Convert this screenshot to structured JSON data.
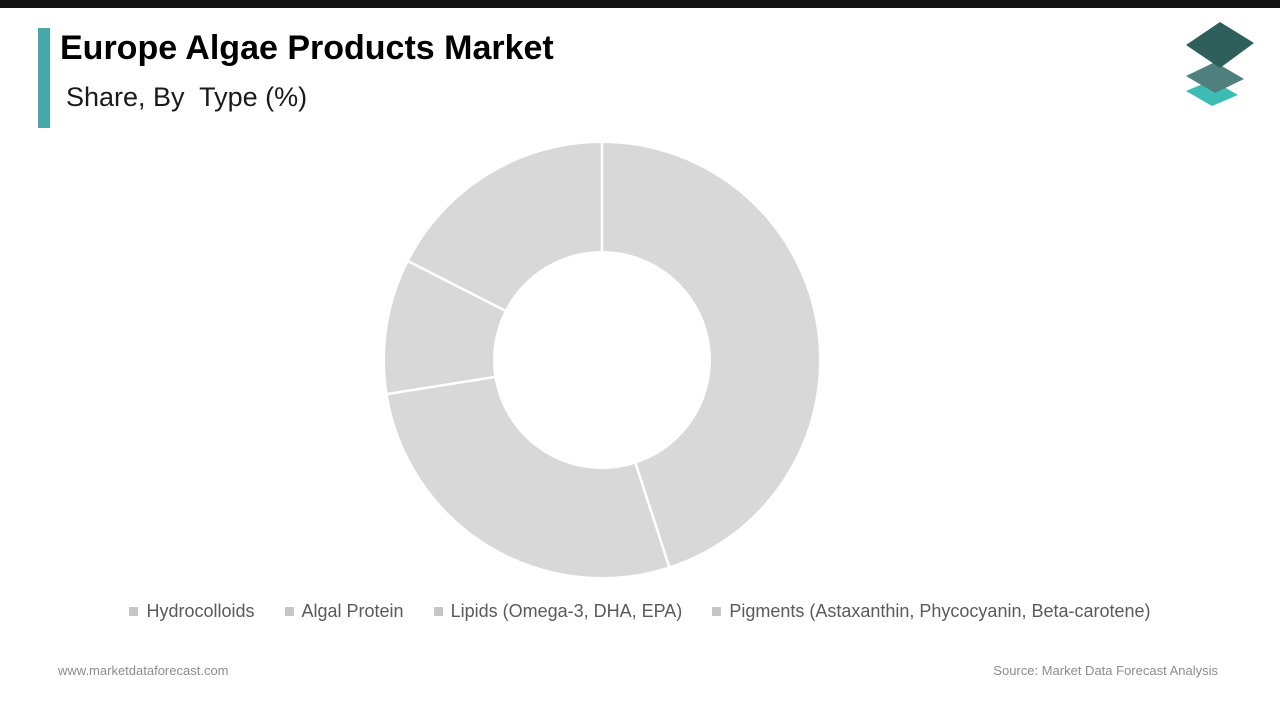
{
  "page": {
    "title": "Europe Algae Products Market",
    "subtitle": "Share, By  Type (%)",
    "footer_left": "www.marketdataforecast.com",
    "footer_right": "Source: Market Data Forecast Analysis"
  },
  "colors": {
    "top_bar": "#141414",
    "accent_teal": "#48a9a9",
    "slice_gray": "#d8d8d8",
    "legend_marker_gray": "#c6c6c6",
    "legend_text_gray": "#5a5a5a",
    "footer_text_gray": "#8c8c8c",
    "logo_layer_top": "#2f5f5b",
    "logo_layer_middle": "#4f807e",
    "logo_layer_bottom": "#3cbcb2"
  },
  "chart_data": {
    "type": "pie",
    "subtype": "donut",
    "title": "Europe Algae Products Market Share, By Type (%)",
    "categories": [
      "Hydrocolloids",
      "Algal Protein",
      "Lipids (Omega-3, DHA, EPA)",
      "Pigments (Astaxanthin, Phycocyanin, Beta-carotene)"
    ],
    "values": [
      45,
      27.5,
      10,
      17.5
    ],
    "unit": "%",
    "start_angle_deg": 0,
    "direction": "clockwise",
    "inner_radius_ratio": 0.5,
    "slice_color": "#d8d8d8",
    "gap_color": "#ffffff",
    "data_labels_shown": false,
    "legend_position": "bottom"
  }
}
